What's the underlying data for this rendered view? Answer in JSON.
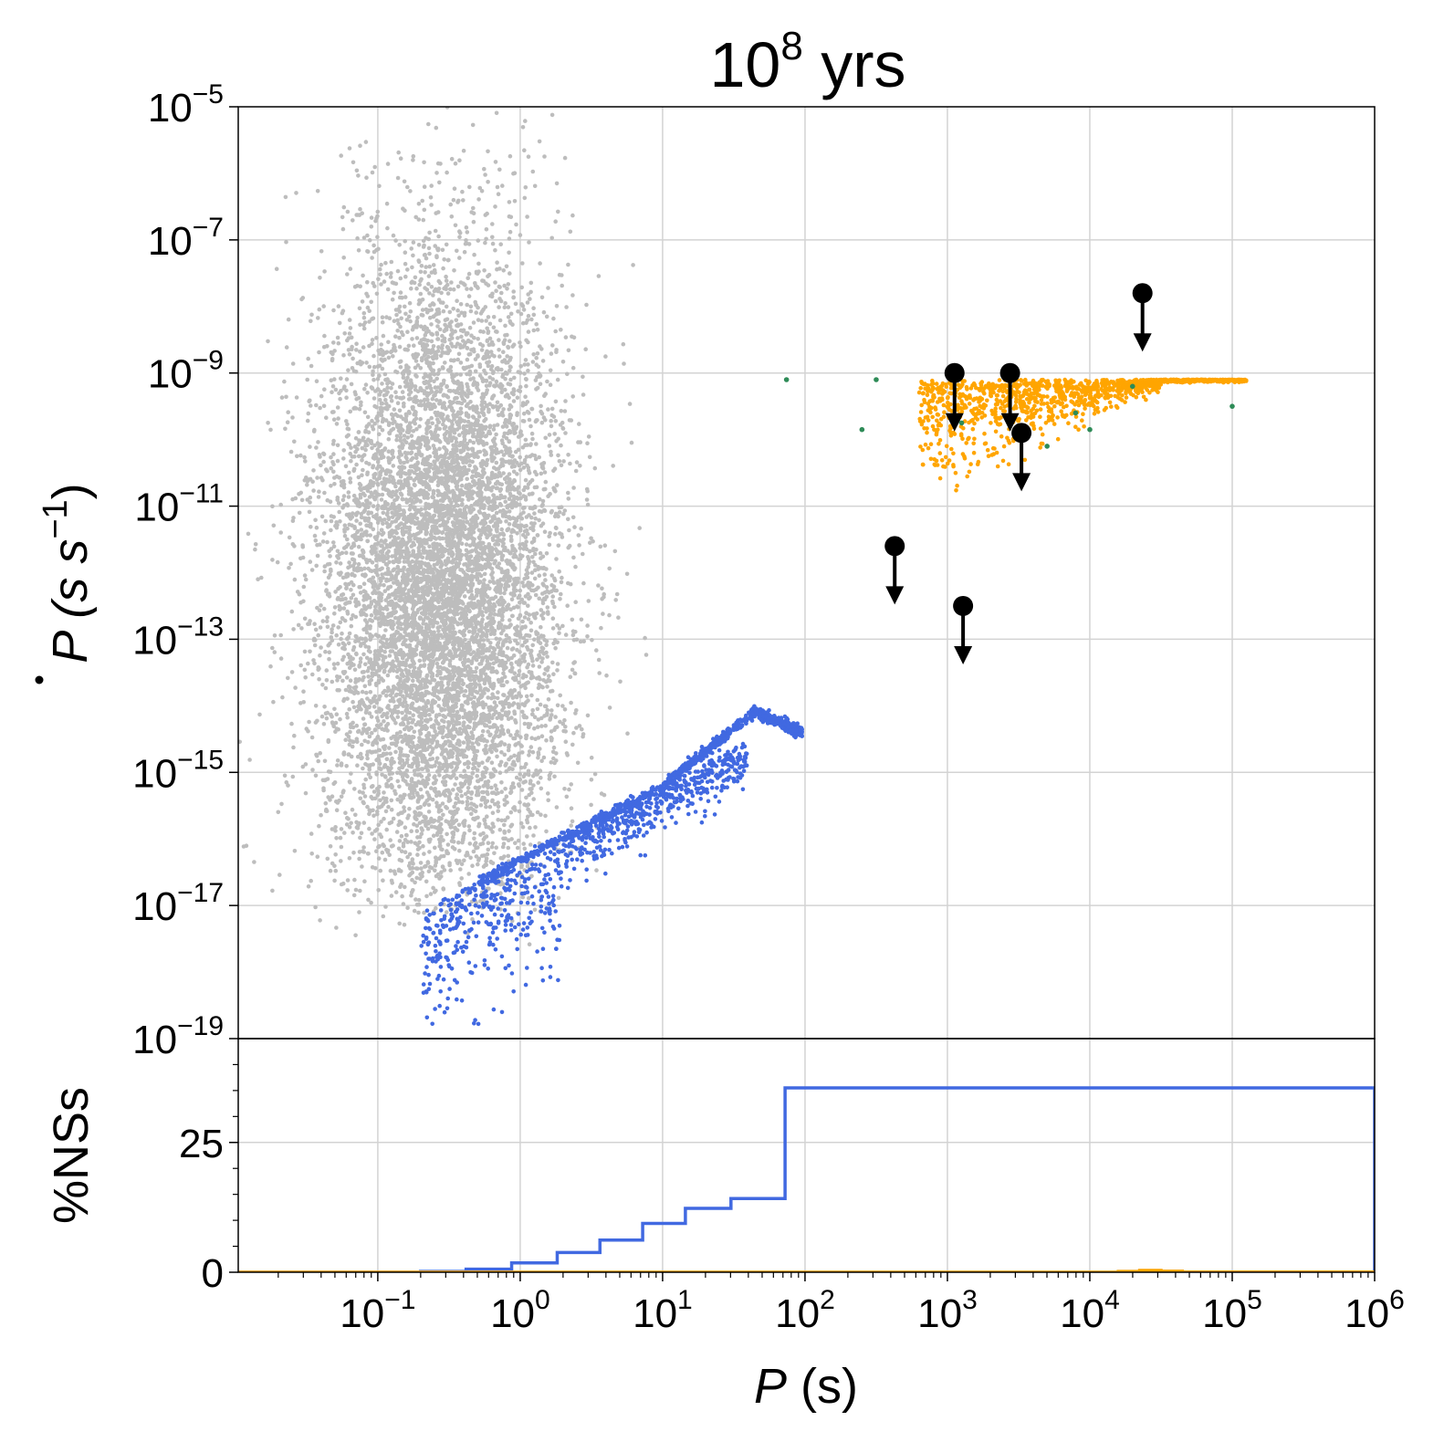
{
  "chart_data": {
    "title": {
      "base": "10",
      "exp": "8",
      "suffix": " yrs"
    },
    "xlabel": {
      "var": "P",
      "unit": " (s)"
    },
    "top_panel": {
      "type": "scatter",
      "xscale": "log",
      "yscale": "log",
      "xlim_exp": [
        -1.98,
        6
      ],
      "ylim_exp": [
        -19,
        -5
      ],
      "ylabel": {
        "var": "P",
        "unit": " (s s",
        "exp": "−1",
        "close": ")"
      },
      "yticks": [
        {
          "base": "10",
          "exp": "−5",
          "v": -5
        },
        {
          "base": "10",
          "exp": "−7",
          "v": -7
        },
        {
          "base": "10",
          "exp": "−9",
          "v": -9
        },
        {
          "base": "10",
          "exp": "−11",
          "v": -11
        },
        {
          "base": "10",
          "exp": "−13",
          "v": -13
        },
        {
          "base": "10",
          "exp": "−15",
          "v": -15
        },
        {
          "base": "10",
          "exp": "−17",
          "v": -17
        },
        {
          "base": "10",
          "exp": "−19",
          "v": -19
        }
      ],
      "grid": true,
      "colors": {
        "gray": "#bdbdbd",
        "blue": "#4169e1",
        "orange": "#ffa500",
        "green": "#2e8b57",
        "black": "#000000"
      },
      "series": {
        "gray_cloud": {
          "name": "isolated NSs",
          "center_log_p": -0.55,
          "center_log_pdot": -12.2,
          "width_dex": 0.85,
          "height_dex": 5.0,
          "min_log_pdot": -17.0
        },
        "blue_line": {
          "name": "blue branch",
          "points": [
            [
              -0.3,
              -16.65
            ],
            [
              1.0,
              -15.2
            ],
            [
              1.65,
              -14.1
            ],
            [
              1.98,
              -14.4
            ]
          ]
        },
        "orange_band": {
          "name": "orange",
          "x_range": [
            2.8,
            5.1
          ],
          "y_top": -9.1,
          "y_bottom_at_x": [
            [
              3.0,
              -11.1
            ],
            [
              3.5,
              -10.6
            ],
            [
              4.0,
              -9.9
            ],
            [
              4.5,
              -9.3
            ]
          ]
        },
        "green_points": [
          [
            1.87,
            -9.1
          ],
          [
            2.5,
            -9.1
          ],
          [
            2.4,
            -9.85
          ],
          [
            3.1,
            -9.75
          ],
          [
            3.9,
            -9.6
          ],
          [
            4.0,
            -9.85
          ],
          [
            4.3,
            -9.2
          ],
          [
            5.0,
            -9.5
          ],
          [
            3.7,
            -10.1
          ]
        ],
        "upper_limits": [
          [
            4.37,
            -7.8
          ],
          [
            3.05,
            -9.0
          ],
          [
            3.44,
            -9.0
          ],
          [
            3.52,
            -9.9
          ],
          [
            2.63,
            -11.6
          ],
          [
            3.11,
            -12.5
          ]
        ]
      }
    },
    "bottom_panel": {
      "type": "step-histogram",
      "ylabel": "%NSs",
      "ylim": [
        0,
        45
      ],
      "yticks": [
        {
          "label": "0",
          "v": 0
        },
        {
          "label": "25",
          "v": 25
        }
      ],
      "xticks": [
        {
          "base": "10",
          "exp": "−1",
          "v": -1
        },
        {
          "base": "10",
          "exp": "0",
          "v": 0
        },
        {
          "base": "10",
          "exp": "1",
          "v": 1
        },
        {
          "base": "10",
          "exp": "2",
          "v": 2
        },
        {
          "base": "10",
          "exp": "3",
          "v": 3
        },
        {
          "base": "10",
          "exp": "4",
          "v": 4
        },
        {
          "base": "10",
          "exp": "5",
          "v": 5
        },
        {
          "base": "10",
          "exp": "6",
          "v": 6
        }
      ],
      "series": [
        {
          "name": "blue",
          "color": "#4169e1",
          "edges_log_p": [
            -1.98,
            -0.7,
            -0.38,
            -0.06,
            0.26,
            0.56,
            0.86,
            1.16,
            1.48,
            1.86,
            6.0
          ],
          "values": [
            0.0,
            0.15,
            0.6,
            1.8,
            3.8,
            6.2,
            9.4,
            12.3,
            14.2,
            35.5,
            0.0
          ]
        },
        {
          "name": "gray",
          "color": "#bdbdbd",
          "edges_log_p": [
            -1.98,
            6.0
          ],
          "values": [
            0.0
          ]
        },
        {
          "name": "orange",
          "color": "#ffa500",
          "edges_log_p": [
            -1.98,
            4.2,
            4.35,
            4.5,
            4.65,
            6.0
          ],
          "values": [
            0.0,
            0.15,
            0.35,
            0.2,
            0.05,
            0.0
          ]
        }
      ]
    }
  }
}
